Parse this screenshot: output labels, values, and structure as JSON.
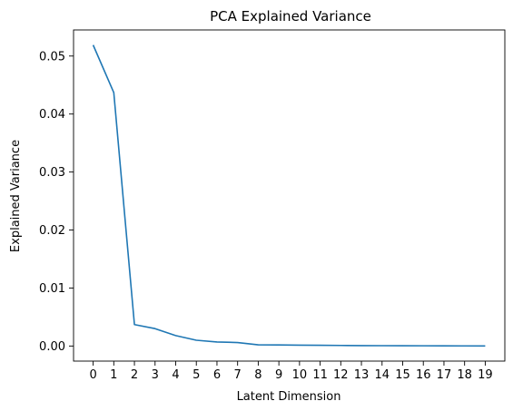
{
  "chart_data": {
    "type": "line",
    "title": "PCA Explained Variance",
    "xlabel": "Latent Dimension",
    "ylabel": "Explained Variance",
    "x": [
      0,
      1,
      2,
      3,
      4,
      5,
      6,
      7,
      8,
      9,
      10,
      11,
      12,
      13,
      14,
      15,
      16,
      17,
      18,
      19
    ],
    "series": [
      {
        "color": "#1f77b4",
        "values": [
          0.0519,
          0.0437,
          0.0037,
          0.003,
          0.0018,
          0.001,
          0.0007,
          0.0006,
          0.0002,
          0.00018,
          0.00015,
          0.00013,
          0.0001,
          7e-05,
          6e-05,
          5e-05,
          4e-05,
          3e-05,
          2e-05,
          1e-05
        ]
      }
    ],
    "xticks": [
      "0",
      "1",
      "2",
      "3",
      "4",
      "5",
      "6",
      "7",
      "8",
      "9",
      "10",
      "11",
      "12",
      "13",
      "14",
      "15",
      "16",
      "17",
      "18",
      "19"
    ],
    "yticks": [
      {
        "value": 0.0,
        "label": "0.00"
      },
      {
        "value": 0.01,
        "label": "0.01"
      },
      {
        "value": 0.02,
        "label": "0.02"
      },
      {
        "value": 0.03,
        "label": "0.03"
      },
      {
        "value": 0.04,
        "label": "0.04"
      },
      {
        "value": 0.05,
        "label": "0.05"
      }
    ],
    "xlim": [
      -0.95,
      19.95
    ],
    "ylim": [
      -0.0026,
      0.0545
    ],
    "grid": false
  }
}
